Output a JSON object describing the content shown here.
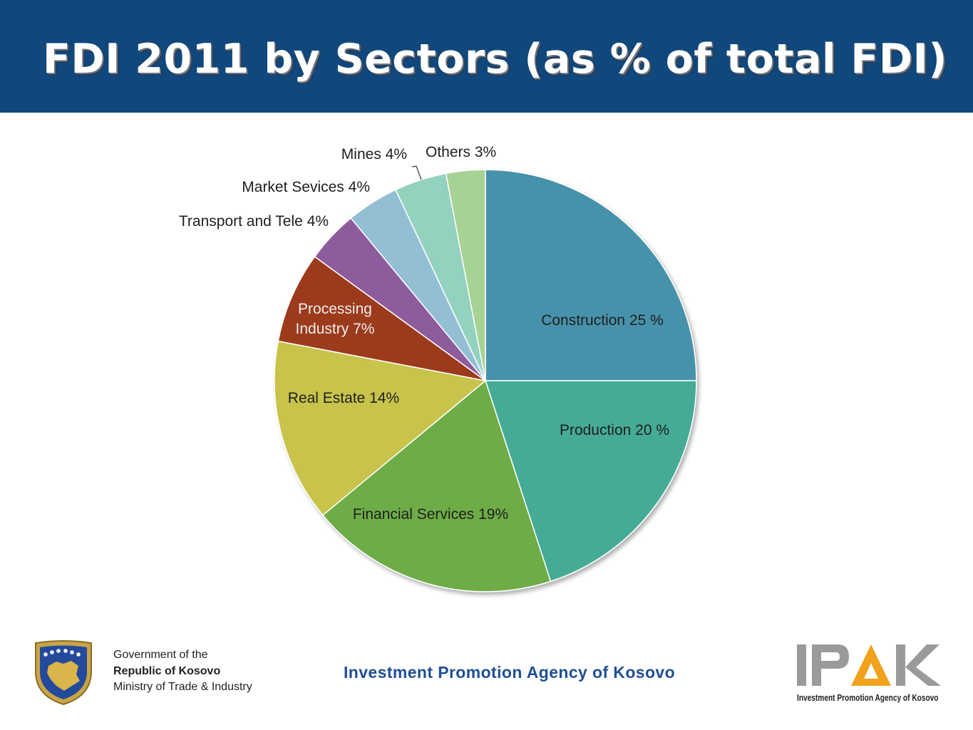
{
  "header": {
    "title": "FDI 2011 by Sectors (as % of total FDI)"
  },
  "colors": {
    "header_bg": "#10487d",
    "agency_text": "#1f4f96",
    "ipak_orange": "#f0a21c",
    "ipak_gray": "#9a9a9a"
  },
  "chart_data": {
    "type": "pie",
    "title": "",
    "start_angle": "12 o'clock",
    "direction": "clockwise",
    "slices": [
      {
        "label": "Construction 25 %",
        "category": "Construction",
        "value": 25,
        "color": "#4792ab"
      },
      {
        "label": "Production 20 %",
        "category": "Production",
        "value": 20,
        "color": "#45ab96"
      },
      {
        "label": "Financial Services 19%",
        "category": "Financial Services",
        "value": 19,
        "color": "#6eac46"
      },
      {
        "label": "Real Estate 14%",
        "category": "Real Estate",
        "value": 14,
        "color": "#c8c34b"
      },
      {
        "label": "Processing Industry 7%",
        "label_lines": [
          "Processing",
          "Industry 7%"
        ],
        "category": "Processing Industry",
        "value": 7,
        "color": "#9c3b1c"
      },
      {
        "label": "Transport and Tele 4%",
        "category": "Transport and Tele",
        "value": 4,
        "color": "#8d5c9c"
      },
      {
        "label": "Market Sevices 4%",
        "category": "Market Sevices",
        "value": 4,
        "color": "#93bfd4"
      },
      {
        "label": "Mines 4%",
        "category": "Mines",
        "value": 4,
        "color": "#94d2c0"
      },
      {
        "label": "Others 3%",
        "category": "Others",
        "value": 3,
        "color": "#a6d394"
      }
    ]
  },
  "footer": {
    "gov_line1": "Government of the",
    "gov_line2": "Republic of Kosovo",
    "gov_line3": "Ministry of Trade & Industry",
    "agency": "Investment Promotion Agency of Kosovo",
    "ipak_letters": "IPAK",
    "ipak_sub": "Investment Promotion Agency of Kosovo"
  }
}
